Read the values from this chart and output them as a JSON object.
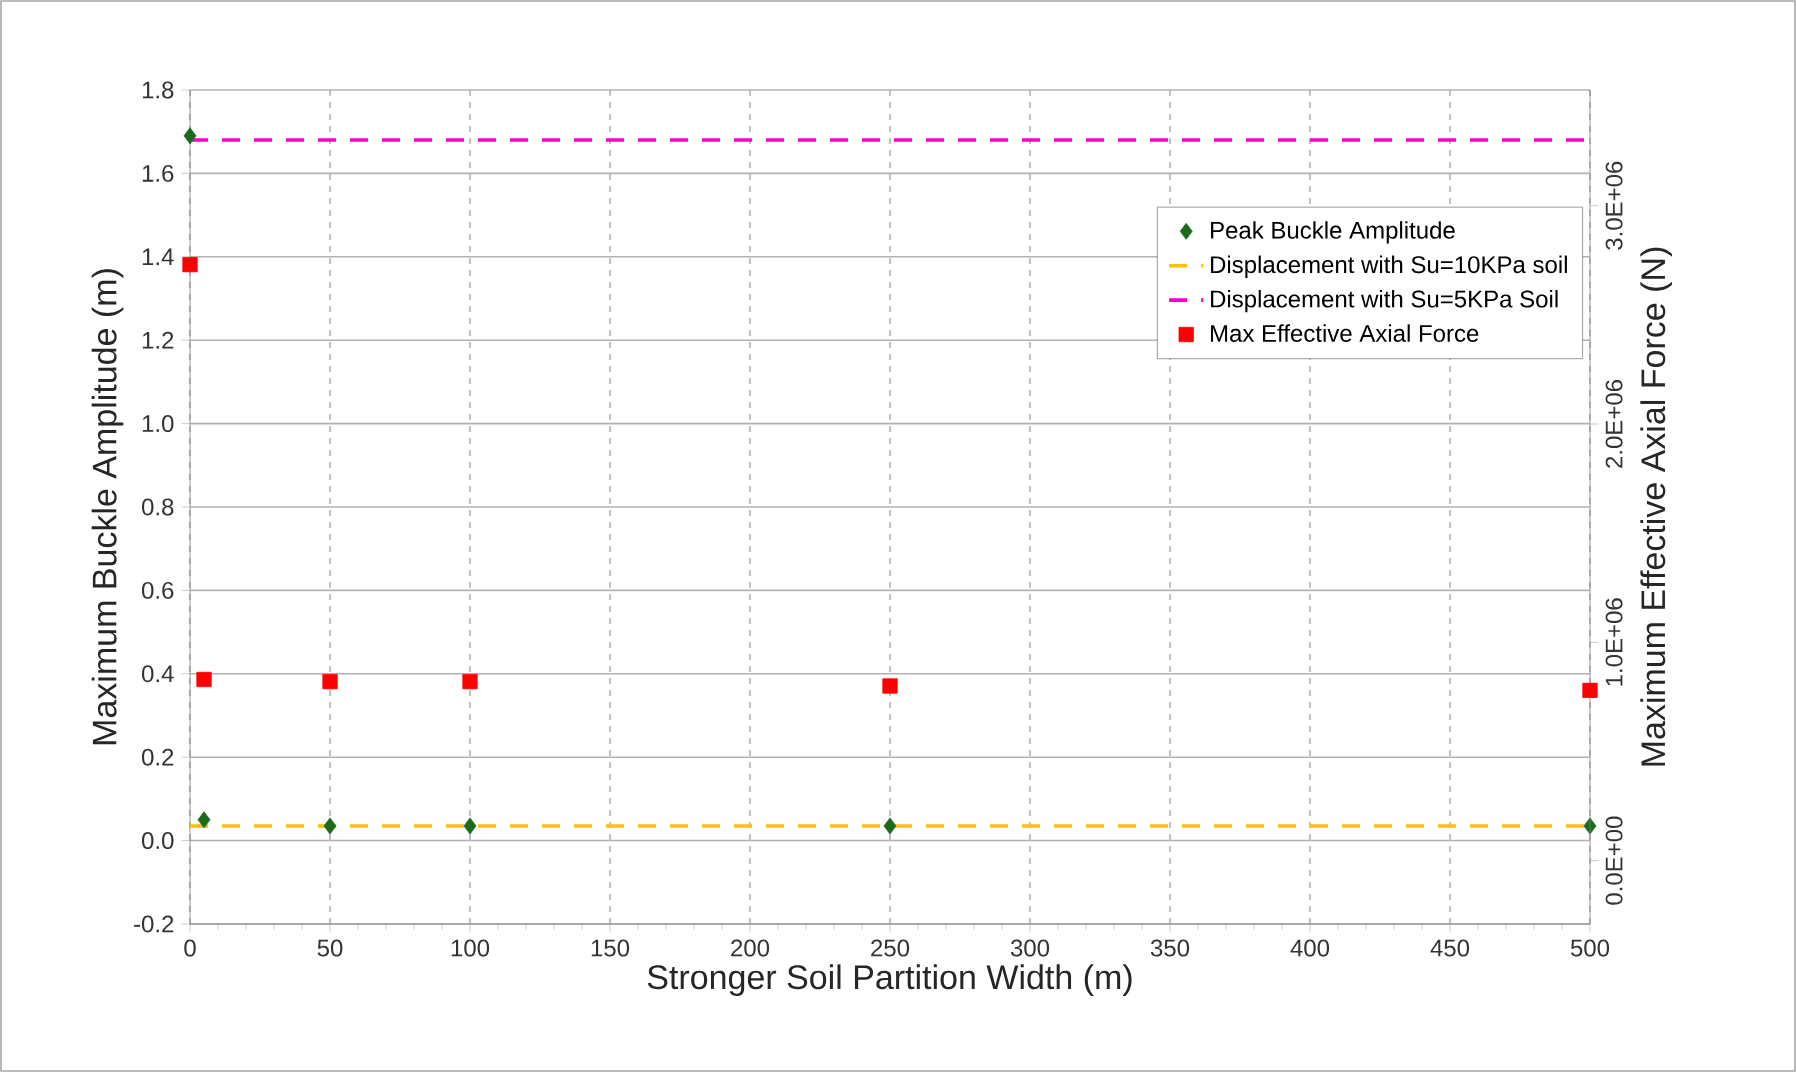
{
  "chart_data": {
    "type": "scatter",
    "xlabel": "Stronger Soil Partition Width (m)",
    "ylabel": "Maximum Buckle Amplitude (m)",
    "y2label": "Maximum Effective Axial Force (N)",
    "xlim": [
      0,
      500
    ],
    "xticks": [
      0,
      50,
      100,
      150,
      200,
      250,
      300,
      350,
      400,
      450,
      500
    ],
    "ylim": [
      -0.2,
      1.8
    ],
    "yticks": [
      {
        "value": -0.2,
        "label": "-0.2"
      },
      {
        "value": 0,
        "label": "0.0"
      },
      {
        "value": 0.2,
        "label": "0.2"
      },
      {
        "value": 0.4,
        "label": "0.4"
      },
      {
        "value": 0.6,
        "label": "0.6"
      },
      {
        "value": 0.8,
        "label": "0.8"
      },
      {
        "value": 1.0,
        "label": "1.0"
      },
      {
        "value": 1.2,
        "label": "1.2"
      },
      {
        "value": 1.4,
        "label": "1.4"
      },
      {
        "value": 1.6,
        "label": "1.6"
      },
      {
        "value": 1.8,
        "label": "1.8"
      }
    ],
    "y2lim": [
      -290000,
      3530000
    ],
    "y2ticks": [
      {
        "value": 0,
        "label": "0.0E+00"
      },
      {
        "value": 1000000,
        "label": "1.0E+06"
      },
      {
        "value": 2000000,
        "label": "2.0E+06"
      },
      {
        "value": 3000000,
        "label": "3.0E+06"
      }
    ],
    "grid": true,
    "legend": "top right",
    "series": [
      {
        "name": "Peak Buckle Amplitude",
        "type": "scatter",
        "marker": "diamond",
        "color": "#1a6b1a",
        "x": [
          0,
          5,
          50,
          100,
          250,
          500
        ],
        "values": [
          1.69,
          0.05,
          0.035,
          0.035,
          0.035,
          0.035
        ]
      },
      {
        "name": "Displacement with Su=10KPa soil",
        "type": "line",
        "marker": "none",
        "line_style": "dashed",
        "color": "#ffc000",
        "x": [
          0,
          500
        ],
        "values": [
          0.035,
          0.035
        ]
      },
      {
        "name": "Displacement with Su=5KPa Soil",
        "type": "line",
        "marker": "none",
        "line_style": "dashed",
        "color": "#ff00cc",
        "x": [
          0,
          500
        ],
        "values": [
          1.68,
          1.68
        ]
      },
      {
        "name": "Max Effective Axial Force",
        "type": "scatter",
        "marker": "square",
        "axis": "y2",
        "color": "#ff0000",
        "x": [
          0,
          5,
          50,
          100,
          250,
          500
        ],
        "values": [
          2730000,
          830000,
          820000,
          820000,
          800000,
          780000
        ]
      }
    ]
  }
}
